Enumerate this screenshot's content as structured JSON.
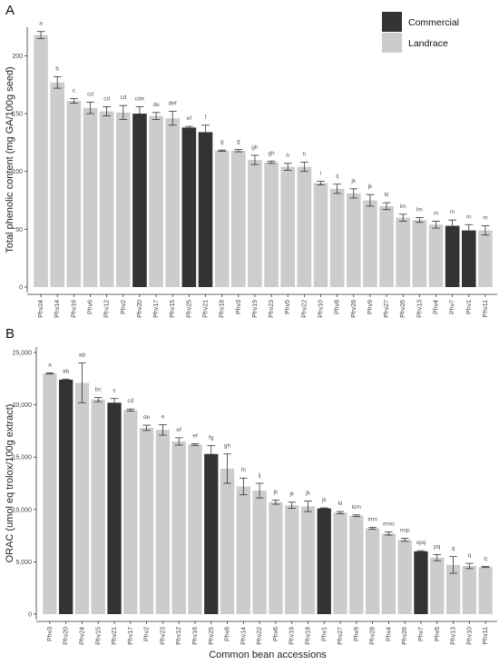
{
  "colors": {
    "commercial": "#333333",
    "landrace": "#cccccc",
    "axis": "#333333",
    "error": "#333333"
  },
  "legend": [
    {
      "name": "Commercial",
      "color": "#333333"
    },
    {
      "name": "Landrace",
      "color": "#cccccc"
    }
  ],
  "chart_data": [
    {
      "panel": "A",
      "type": "bar",
      "title": "",
      "xlabel": "",
      "ylabel": "Total phenolic content (mg GA/100g seed)",
      "ylim": [
        0,
        220
      ],
      "yticks": [
        0,
        50,
        100,
        150,
        200
      ],
      "grid": false,
      "legend_position": "top-right",
      "bars": [
        {
          "category": "Phv24",
          "value": 218,
          "error": 3,
          "sig": "a",
          "group": "Landrace"
        },
        {
          "category": "Phv14",
          "value": 177,
          "error": 5,
          "sig": "b",
          "group": "Landrace"
        },
        {
          "category": "Phv16",
          "value": 161,
          "error": 2,
          "sig": "c",
          "group": "Landrace"
        },
        {
          "category": "Phv6",
          "value": 155,
          "error": 5,
          "sig": "cd",
          "group": "Landrace"
        },
        {
          "category": "Phv12",
          "value": 152,
          "error": 4,
          "sig": "cd",
          "group": "Landrace"
        },
        {
          "category": "Phv2",
          "value": 151,
          "error": 6,
          "sig": "cd",
          "group": "Landrace"
        },
        {
          "category": "Phv20",
          "value": 150,
          "error": 6,
          "sig": "cde",
          "group": "Commercial"
        },
        {
          "category": "Phv17",
          "value": 148,
          "error": 3,
          "sig": "de",
          "group": "Landrace"
        },
        {
          "category": "Phv15",
          "value": 146,
          "error": 6,
          "sig": "def",
          "group": "Landrace"
        },
        {
          "category": "Phv25",
          "value": 138,
          "error": 1,
          "sig": "ef",
          "group": "Commercial"
        },
        {
          "category": "Phv21",
          "value": 134,
          "error": 6,
          "sig": "f",
          "group": "Commercial"
        },
        {
          "category": "Phv18",
          "value": 118,
          "error": 0.5,
          "sig": "g",
          "group": "Landrace"
        },
        {
          "category": "Phv3",
          "value": 118,
          "error": 1,
          "sig": "g",
          "group": "Landrace"
        },
        {
          "category": "Phv19",
          "value": 110,
          "error": 4,
          "sig": "gh",
          "group": "Landrace"
        },
        {
          "category": "Phv23",
          "value": 108,
          "error": 1,
          "sig": "gh",
          "group": "Landrace"
        },
        {
          "category": "Phv5",
          "value": 104,
          "error": 3,
          "sig": "h",
          "group": "Landrace"
        },
        {
          "category": "Phv22",
          "value": 104,
          "error": 4,
          "sig": "h",
          "group": "Landrace"
        },
        {
          "category": "Phv10",
          "value": 90,
          "error": 1.5,
          "sig": "i",
          "group": "Landrace"
        },
        {
          "category": "Phv8",
          "value": 85,
          "error": 4,
          "sig": "ij",
          "group": "Landrace"
        },
        {
          "category": "Phv28",
          "value": 81,
          "error": 4,
          "sig": "jk",
          "group": "Landrace"
        },
        {
          "category": "Phv9",
          "value": 75,
          "error": 5,
          "sig": "jk",
          "group": "Landrace"
        },
        {
          "category": "Phv27",
          "value": 70,
          "error": 3,
          "sig": "kl",
          "group": "Landrace"
        },
        {
          "category": "Phv26",
          "value": 60,
          "error": 3,
          "sig": "lm",
          "group": "Landrace"
        },
        {
          "category": "Phv13",
          "value": 58,
          "error": 2,
          "sig": "lm",
          "group": "Landrace"
        },
        {
          "category": "Phv4",
          "value": 54,
          "error": 3,
          "sig": "m",
          "group": "Landrace"
        },
        {
          "category": "Phv7",
          "value": 53,
          "error": 5,
          "sig": "m",
          "group": "Commercial"
        },
        {
          "category": "Phv1",
          "value": 49,
          "error": 5,
          "sig": "m",
          "group": "Commercial"
        },
        {
          "category": "Phv11",
          "value": 49,
          "error": 4,
          "sig": "m",
          "group": "Landrace"
        }
      ]
    },
    {
      "panel": "B",
      "type": "bar",
      "title": "",
      "xlabel": "Common bean accessions",
      "ylabel": "ORAC (umol eq trolox/100g extract)",
      "ylim": [
        0,
        25000
      ],
      "yticks": [
        0,
        5000,
        10000,
        15000,
        20000,
        25000
      ],
      "yticklabels": [
        "0",
        "5,000",
        "10,000",
        "15,000",
        "20,000",
        "25,000"
      ],
      "grid": false,
      "bars": [
        {
          "category": "Phv3",
          "value": 23000,
          "error": 60,
          "sig": "a",
          "group": "Landrace"
        },
        {
          "category": "Phv20",
          "value": 22400,
          "error": 60,
          "sig": "ab",
          "group": "Commercial"
        },
        {
          "category": "Phv24",
          "value": 22100,
          "error": 1900,
          "sig": "ab",
          "group": "Landrace"
        },
        {
          "category": "Phv15",
          "value": 20500,
          "error": 200,
          "sig": "bc",
          "group": "Landrace"
        },
        {
          "category": "Phv21",
          "value": 20200,
          "error": 400,
          "sig": "c",
          "group": "Commercial"
        },
        {
          "category": "Phv17",
          "value": 19500,
          "error": 100,
          "sig": "cd",
          "group": "Landrace"
        },
        {
          "category": "Phv2",
          "value": 17800,
          "error": 250,
          "sig": "de",
          "group": "Landrace"
        },
        {
          "category": "Phv23",
          "value": 17600,
          "error": 500,
          "sig": "e",
          "group": "Landrace"
        },
        {
          "category": "Phv12",
          "value": 16500,
          "error": 350,
          "sig": "ef",
          "group": "Landrace"
        },
        {
          "category": "Phv16",
          "value": 16200,
          "error": 80,
          "sig": "ef",
          "group": "Landrace"
        },
        {
          "category": "Phv25",
          "value": 15300,
          "error": 800,
          "sig": "fg",
          "group": "Commercial"
        },
        {
          "category": "Phv8",
          "value": 13900,
          "error": 1400,
          "sig": "gh",
          "group": "Landrace"
        },
        {
          "category": "Phv14",
          "value": 12200,
          "error": 800,
          "sig": "hi",
          "group": "Landrace"
        },
        {
          "category": "Phv22",
          "value": 11800,
          "error": 700,
          "sig": "ij",
          "group": "Landrace"
        },
        {
          "category": "Phv6",
          "value": 10700,
          "error": 200,
          "sig": "jk",
          "group": "Landrace"
        },
        {
          "category": "Phv19",
          "value": 10400,
          "error": 300,
          "sig": "jk",
          "group": "Landrace"
        },
        {
          "category": "Phv18",
          "value": 10300,
          "error": 500,
          "sig": "jk",
          "group": "Landrace"
        },
        {
          "category": "Phv1",
          "value": 10100,
          "error": 50,
          "sig": "jk",
          "group": "Commercial"
        },
        {
          "category": "Phv27",
          "value": 9700,
          "error": 100,
          "sig": "kl",
          "group": "Landrace"
        },
        {
          "category": "Phv9",
          "value": 9400,
          "error": 80,
          "sig": "klm",
          "group": "Landrace"
        },
        {
          "category": "Phv28",
          "value": 8200,
          "error": 100,
          "sig": "lmn",
          "group": "Landrace"
        },
        {
          "category": "Phv4",
          "value": 7700,
          "error": 150,
          "sig": "mno",
          "group": "Landrace"
        },
        {
          "category": "Phv26",
          "value": 7100,
          "error": 150,
          "sig": "nop",
          "group": "Landrace"
        },
        {
          "category": "Phv7",
          "value": 6000,
          "error": 60,
          "sig": "opq",
          "group": "Commercial"
        },
        {
          "category": "Phv5",
          "value": 5400,
          "error": 300,
          "sig": "pq",
          "group": "Landrace"
        },
        {
          "category": "Phv13",
          "value": 4700,
          "error": 800,
          "sig": "q",
          "group": "Landrace"
        },
        {
          "category": "Phv10",
          "value": 4600,
          "error": 250,
          "sig": "q",
          "group": "Landrace"
        },
        {
          "category": "Phv11",
          "value": 4500,
          "error": 50,
          "sig": "q",
          "group": "Landrace"
        }
      ]
    }
  ]
}
